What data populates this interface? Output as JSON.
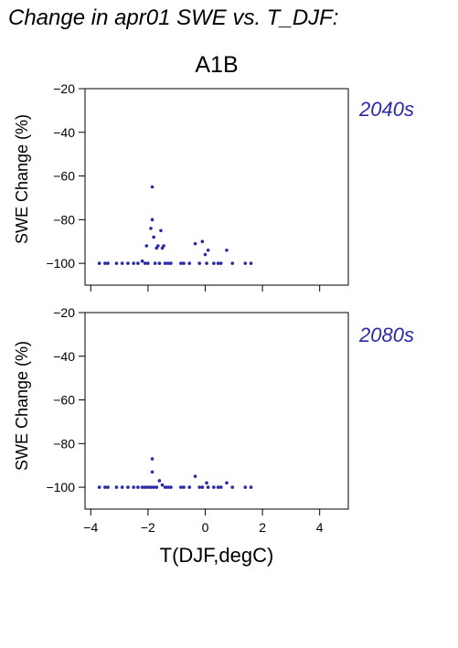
{
  "figure": {
    "title": "Change in apr01 SWE vs. T_DJF:",
    "panel_title": "A1B",
    "point_color": "#2a2aa8",
    "label_color": "#2a2aa8"
  },
  "chart_data": [
    {
      "type": "scatter",
      "period": "2040s",
      "xlabel": "",
      "ylabel": "SWE Change (%)",
      "xlim": [
        -4.2,
        5.0
      ],
      "ylim": [
        -110,
        -20
      ],
      "xticks": [
        -4,
        -2,
        0,
        2,
        4
      ],
      "yticks": [
        -20,
        -40,
        -60,
        -80,
        -100
      ],
      "ytick_labels": [
        "−20",
        "−40",
        "−60",
        "−80",
        "−100"
      ],
      "grid": false,
      "points": [
        [
          -3.7,
          -100
        ],
        [
          -3.5,
          -100
        ],
        [
          -3.4,
          -100
        ],
        [
          -3.1,
          -100
        ],
        [
          -2.9,
          -100
        ],
        [
          -2.7,
          -100
        ],
        [
          -2.5,
          -100
        ],
        [
          -2.35,
          -100
        ],
        [
          -2.2,
          -99
        ],
        [
          -2.1,
          -100
        ],
        [
          -2.05,
          -92
        ],
        [
          -2.0,
          -100
        ],
        [
          -1.9,
          -84
        ],
        [
          -1.85,
          -80
        ],
        [
          -1.8,
          -88
        ],
        [
          -1.85,
          -65
        ],
        [
          -1.75,
          -100
        ],
        [
          -1.7,
          -93
        ],
        [
          -1.65,
          -92
        ],
        [
          -1.6,
          -100
        ],
        [
          -1.55,
          -85
        ],
        [
          -1.5,
          -93
        ],
        [
          -1.45,
          -92
        ],
        [
          -1.4,
          -100
        ],
        [
          -1.3,
          -100
        ],
        [
          -1.2,
          -100
        ],
        [
          -0.85,
          -100
        ],
        [
          -0.75,
          -100
        ],
        [
          -0.55,
          -100
        ],
        [
          -0.35,
          -91
        ],
        [
          -0.2,
          -100
        ],
        [
          -0.1,
          -90
        ],
        [
          0.0,
          -96
        ],
        [
          0.05,
          -100
        ],
        [
          0.1,
          -94
        ],
        [
          0.3,
          -100
        ],
        [
          0.45,
          -100
        ],
        [
          0.55,
          -100
        ],
        [
          0.75,
          -94
        ],
        [
          0.95,
          -100
        ],
        [
          1.4,
          -100
        ],
        [
          1.6,
          -100
        ]
      ]
    },
    {
      "type": "scatter",
      "period": "2080s",
      "xlabel": "T(DJF,degC)",
      "ylabel": "SWE Change (%)",
      "xlim": [
        -4.2,
        5.0
      ],
      "ylim": [
        -110,
        -20
      ],
      "xticks": [
        -4,
        -2,
        0,
        2,
        4
      ],
      "xtick_labels": [
        "−4",
        "−2",
        "0",
        "2",
        "4"
      ],
      "yticks": [
        -20,
        -40,
        -60,
        -80,
        -100
      ],
      "ytick_labels": [
        "−20",
        "−40",
        "−60",
        "−80",
        "−100"
      ],
      "grid": false,
      "points": [
        [
          -3.7,
          -100
        ],
        [
          -3.5,
          -100
        ],
        [
          -3.4,
          -100
        ],
        [
          -3.1,
          -100
        ],
        [
          -2.9,
          -100
        ],
        [
          -2.7,
          -100
        ],
        [
          -2.5,
          -100
        ],
        [
          -2.35,
          -100
        ],
        [
          -2.2,
          -100
        ],
        [
          -2.1,
          -100
        ],
        [
          -2.0,
          -100
        ],
        [
          -1.9,
          -100
        ],
        [
          -1.85,
          -87
        ],
        [
          -1.85,
          -93
        ],
        [
          -1.8,
          -100
        ],
        [
          -1.7,
          -100
        ],
        [
          -1.6,
          -97
        ],
        [
          -1.5,
          -99
        ],
        [
          -1.4,
          -100
        ],
        [
          -1.3,
          -100
        ],
        [
          -1.2,
          -100
        ],
        [
          -0.85,
          -100
        ],
        [
          -0.75,
          -100
        ],
        [
          -0.55,
          -100
        ],
        [
          -0.35,
          -95
        ],
        [
          -0.2,
          -100
        ],
        [
          -0.1,
          -100
        ],
        [
          0.05,
          -98
        ],
        [
          0.1,
          -100
        ],
        [
          0.3,
          -100
        ],
        [
          0.45,
          -100
        ],
        [
          0.55,
          -100
        ],
        [
          0.75,
          -98
        ],
        [
          0.95,
          -100
        ],
        [
          1.4,
          -100
        ],
        [
          1.6,
          -100
        ]
      ]
    }
  ]
}
